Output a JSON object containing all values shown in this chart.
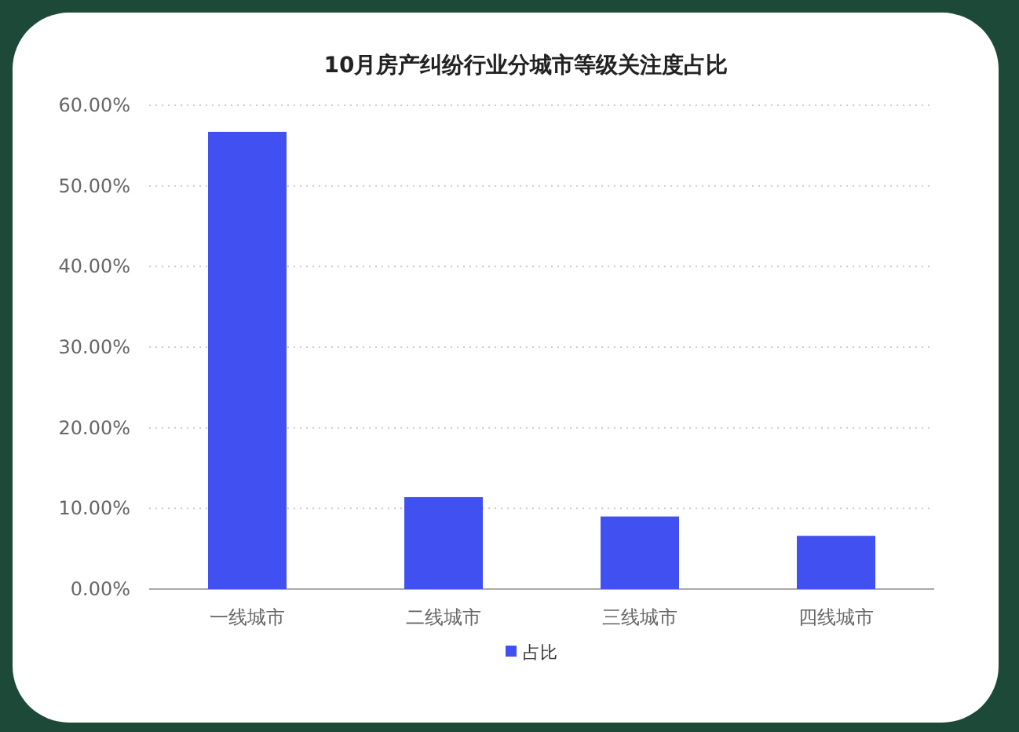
{
  "chart_data": {
    "type": "bar",
    "title": "10月房产纠纷行业分城市等级关注度占比",
    "categories": [
      "一线城市",
      "二线城市",
      "三线城市",
      "四线城市"
    ],
    "series": [
      {
        "name": "占比",
        "color": "#4150f0",
        "values": [
          56.7,
          11.4,
          9.0,
          6.6
        ]
      }
    ],
    "ylim": [
      0,
      60
    ],
    "yticks": [
      {
        "value": 0,
        "label": "0.00%"
      },
      {
        "value": 10,
        "label": "10.00%"
      },
      {
        "value": 20,
        "label": "20.00%"
      },
      {
        "value": 30,
        "label": "30.00%"
      },
      {
        "value": 40,
        "label": "40.00%"
      },
      {
        "value": 50,
        "label": "50.00%"
      },
      {
        "value": 60,
        "label": "60.00%"
      }
    ],
    "grid": "y",
    "legend": "bottom"
  }
}
